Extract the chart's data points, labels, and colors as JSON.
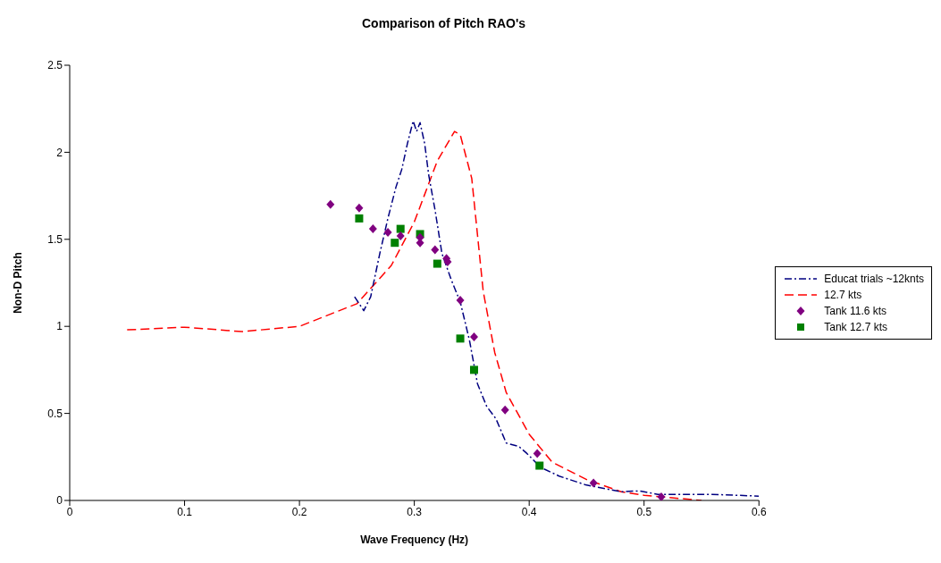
{
  "chart_data": {
    "type": "line",
    "title": "Comparison of Pitch RAO's",
    "xlabel": "Wave Frequency (Hz)",
    "ylabel": "Non-D Pitch",
    "xlim": [
      0,
      0.6
    ],
    "xticks": [
      0,
      0.1,
      0.2,
      0.3,
      0.4,
      0.5,
      0.6
    ],
    "ylim": [
      0,
      2.5
    ],
    "yticks": [
      0,
      0.5,
      1,
      1.5,
      2,
      2.5
    ],
    "grid": false,
    "legend": "right",
    "series": [
      {
        "name": "Educat trials ~12knts",
        "color": "#000080",
        "line_style": "dashdot",
        "marker": "none",
        "x": [
          0.248,
          0.256,
          0.262,
          0.27,
          0.277,
          0.284,
          0.289,
          0.294,
          0.299,
          0.302,
          0.305,
          0.309,
          0.3125,
          0.318,
          0.324,
          0.332,
          0.34,
          0.348,
          0.355,
          0.363,
          0.371,
          0.38,
          0.391,
          0.398,
          0.41,
          0.426,
          0.449,
          0.48,
          0.496,
          0.512,
          0.559,
          0.6
        ],
        "values": [
          1.17,
          1.09,
          1.17,
          1.42,
          1.62,
          1.8,
          1.9,
          2.05,
          2.18,
          2.12,
          2.17,
          2.05,
          1.87,
          1.67,
          1.42,
          1.27,
          1.14,
          0.92,
          0.67,
          0.54,
          0.47,
          0.33,
          0.31,
          0.27,
          0.19,
          0.14,
          0.09,
          0.05,
          0.055,
          0.035,
          0.035,
          0.025
        ]
      },
      {
        "name": "12.7 kts",
        "color": "#ff0000",
        "line_style": "dashed",
        "marker": "none",
        "x": [
          0.05,
          0.1,
          0.15,
          0.2,
          0.25,
          0.28,
          0.3,
          0.32,
          0.335,
          0.34,
          0.35,
          0.36,
          0.37,
          0.38,
          0.4,
          0.42,
          0.45,
          0.48,
          0.5,
          0.55
        ],
        "values": [
          0.98,
          0.995,
          0.97,
          1.0,
          1.13,
          1.35,
          1.6,
          1.95,
          2.12,
          2.1,
          1.85,
          1.2,
          0.85,
          0.62,
          0.38,
          0.22,
          0.12,
          0.05,
          0.03,
          0.0
        ]
      },
      {
        "name": "Tank 11.6 kts",
        "type": "scatter",
        "color": "#800080",
        "marker": "diamond",
        "x": [
          0.227,
          0.252,
          0.264,
          0.277,
          0.288,
          0.305,
          0.305,
          0.318,
          0.328,
          0.329,
          0.34,
          0.352,
          0.379,
          0.407,
          0.456,
          0.515
        ],
        "values": [
          1.7,
          1.68,
          1.56,
          1.54,
          1.52,
          1.51,
          1.48,
          1.44,
          1.39,
          1.37,
          1.15,
          0.94,
          0.52,
          0.27,
          0.1,
          0.02
        ]
      },
      {
        "name": "Tank 12.7 kts",
        "type": "scatter",
        "color": "#008000",
        "marker": "square",
        "x": [
          0.252,
          0.283,
          0.288,
          0.305,
          0.32,
          0.34,
          0.352,
          0.409
        ],
        "values": [
          1.62,
          1.48,
          1.56,
          1.53,
          1.36,
          0.93,
          0.75,
          0.2
        ]
      }
    ]
  }
}
